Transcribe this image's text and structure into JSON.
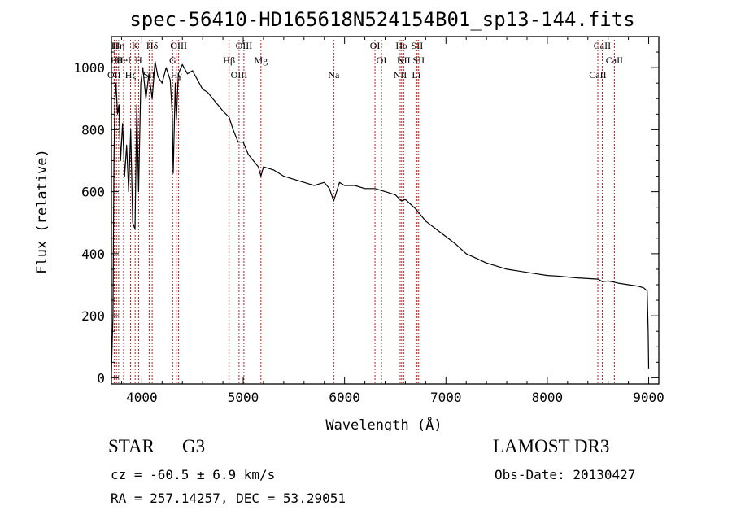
{
  "chart_data": {
    "type": "line",
    "title": "spec-56410-HD165618N524154B01_sp13-144.fits",
    "xlabel": "Wavelength (Å)",
    "ylabel": "Flux (relative)",
    "xlim": [
      3700,
      9100
    ],
    "ylim": [
      -20,
      1100
    ],
    "xticks": [
      4000,
      5000,
      6000,
      7000,
      8000,
      9000
    ],
    "yticks": [
      0,
      200,
      400,
      600,
      800,
      1000
    ],
    "series": [
      {
        "name": "flux",
        "x": [
          3700,
          3715,
          3725,
          3735,
          3745,
          3760,
          3775,
          3790,
          3810,
          3830,
          3850,
          3870,
          3890,
          3910,
          3933,
          3950,
          3968,
          3990,
          4010,
          4040,
          4070,
          4102,
          4130,
          4160,
          4200,
          4240,
          4280,
          4300,
          4310,
          4330,
          4340,
          4360,
          4400,
          4450,
          4500,
          4550,
          4600,
          4650,
          4700,
          4750,
          4800,
          4861,
          4900,
          4950,
          5000,
          5050,
          5100,
          5150,
          5175,
          5200,
          5300,
          5400,
          5500,
          5600,
          5700,
          5800,
          5850,
          5893,
          5950,
          6000,
          6100,
          6200,
          6300,
          6400,
          6500,
          6563,
          6600,
          6700,
          6800,
          6900,
          7000,
          7100,
          7200,
          7300,
          7400,
          7500,
          7600,
          7700,
          7800,
          7900,
          8000,
          8100,
          8200,
          8300,
          8400,
          8500,
          8542,
          8600,
          8662,
          8700,
          8800,
          8900,
          8950,
          8985,
          8995,
          9000
        ],
        "y": [
          20,
          200,
          700,
          900,
          950,
          850,
          880,
          700,
          820,
          650,
          750,
          600,
          800,
          500,
          480,
          880,
          600,
          950,
          1000,
          900,
          980,
          900,
          1020,
          970,
          950,
          1000,
          960,
          850,
          660,
          950,
          830,
          980,
          1010,
          980,
          990,
          960,
          930,
          920,
          900,
          880,
          860,
          840,
          800,
          760,
          760,
          720,
          700,
          680,
          650,
          680,
          670,
          650,
          640,
          630,
          620,
          630,
          610,
          570,
          630,
          620,
          620,
          610,
          610,
          600,
          590,
          570,
          575,
          545,
          505,
          480,
          455,
          430,
          400,
          385,
          370,
          360,
          350,
          345,
          340,
          335,
          330,
          328,
          325,
          322,
          320,
          318,
          310,
          312,
          308,
          305,
          300,
          295,
          290,
          280,
          150,
          30
        ]
      }
    ],
    "line_markers": [
      {
        "wavelength": 3734,
        "label": "H"
      },
      {
        "wavelength": 3750,
        "label": "Hθ"
      },
      {
        "wavelength": 3727,
        "label": "OII"
      },
      {
        "wavelength": 3771,
        "label": "Hη"
      },
      {
        "wavelength": 3820,
        "label": "HeI"
      },
      {
        "wavelength": 3889,
        "label": "Hζ"
      },
      {
        "wavelength": 3934,
        "label": "K"
      },
      {
        "wavelength": 3968,
        "label": "H"
      },
      {
        "wavelength": 4072,
        "label": "SII"
      },
      {
        "wavelength": 4102,
        "label": "Hδ"
      },
      {
        "wavelength": 4304,
        "label": "G"
      },
      {
        "wavelength": 4340,
        "label": "Hγ"
      },
      {
        "wavelength": 4363,
        "label": "OIII"
      },
      {
        "wavelength": 4861,
        "label": "Hβ"
      },
      {
        "wavelength": 4959,
        "label": "OIII"
      },
      {
        "wavelength": 5007,
        "label": "OIII"
      },
      {
        "wavelength": 5175,
        "label": "Mg"
      },
      {
        "wavelength": 5893,
        "label": "Na"
      },
      {
        "wavelength": 6300,
        "label": "OI"
      },
      {
        "wavelength": 6364,
        "label": "OI"
      },
      {
        "wavelength": 6548,
        "label": "NII"
      },
      {
        "wavelength": 6563,
        "label": "Hα"
      },
      {
        "wavelength": 6583,
        "label": "NII"
      },
      {
        "wavelength": 6707,
        "label": "Li"
      },
      {
        "wavelength": 6716,
        "label": "SII"
      },
      {
        "wavelength": 6731,
        "label": "SII"
      },
      {
        "wavelength": 8498,
        "label": "CaII"
      },
      {
        "wavelength": 8542,
        "label": "CaII"
      },
      {
        "wavelength": 8662,
        "label": "CaII"
      }
    ]
  },
  "info": {
    "class_label": "STAR",
    "subclass": "G3",
    "survey": "LAMOST DR3",
    "cz": "cz = -60.5 ± 6.9 km/s",
    "obs_date": "Obs-Date: 20130427",
    "radec": "RA = 257.14257, DEC =  53.29051"
  },
  "colors": {
    "line": "#000000",
    "marker": "#b22222",
    "axes": "#000000"
  }
}
